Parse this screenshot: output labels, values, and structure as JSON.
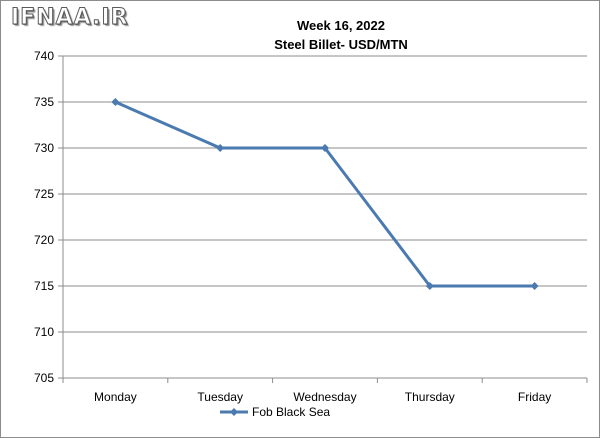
{
  "watermark": "IFNAA.IR",
  "colors": {
    "series": "#4a7ab0",
    "grid": "#8c8c8c",
    "axis": "#8c8c8c"
  },
  "chart_data": {
    "type": "line",
    "title": "Week 16, 2022",
    "subtitle": "Steel Billet- USD/MTN",
    "xlabel": "",
    "ylabel": "",
    "categories": [
      "Monday",
      "Tuesday",
      "Wednesday",
      "Thursday",
      "Friday"
    ],
    "series": [
      {
        "name": "Fob Black Sea",
        "values": [
          735,
          730,
          730,
          715,
          715
        ],
        "color": "#4a7ab0",
        "marker": "diamond"
      }
    ],
    "ylim": [
      705,
      740
    ],
    "yticks": [
      740,
      735,
      730,
      725,
      720,
      715,
      710,
      705
    ],
    "grid": true,
    "legend": "bottom"
  }
}
